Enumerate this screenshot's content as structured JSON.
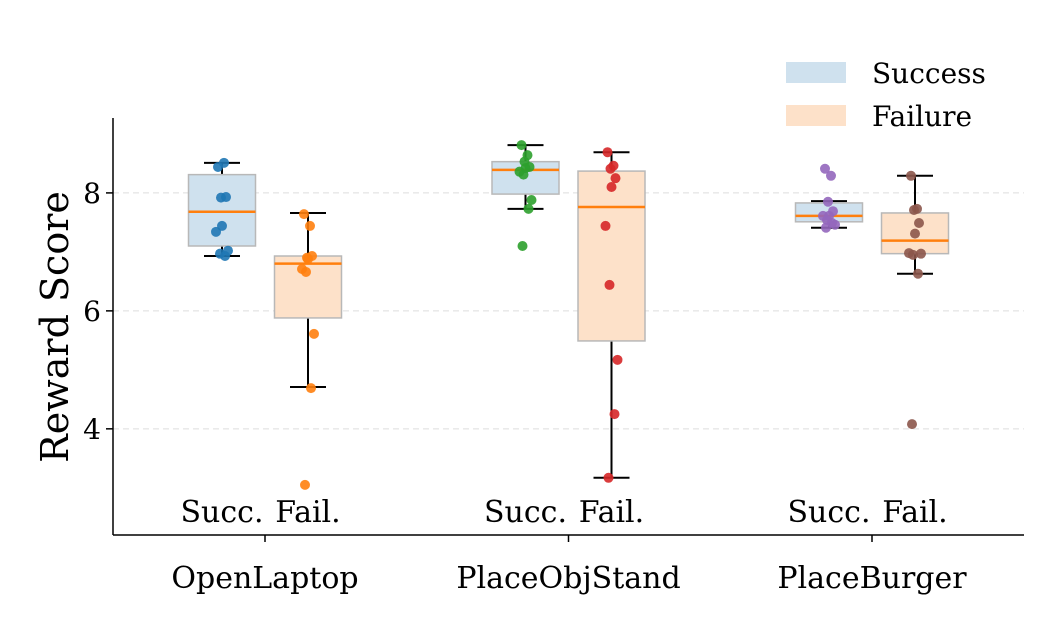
{
  "chart_data": {
    "type": "box",
    "title": "",
    "xlabel": "",
    "ylabel": "Reward Score",
    "ylim": [
      2.2,
      9.27
    ],
    "yticks": [
      4,
      6,
      8
    ],
    "grid": "y-dashed",
    "legend": {
      "placement": "top-right",
      "entries": [
        {
          "label": "Success",
          "color": "#cfe1ee"
        },
        {
          "label": "Failure",
          "color": "#fde1c9"
        }
      ]
    },
    "sublabels": {
      "success": "Succ.",
      "failure": "Fail."
    },
    "median_color": "#ff7f0e",
    "groups": [
      {
        "label": "OpenLaptop",
        "success": {
          "q1": 7.1,
          "median": 7.68,
          "q3": 8.31,
          "whisker_low": 6.93,
          "whisker_high": 8.51,
          "point_color": "#1f77b4",
          "points": [
            8.44,
            8.51,
            7.92,
            7.93,
            7.44,
            7.34,
            6.97,
            7.02,
            6.93
          ]
        },
        "failure": {
          "q1": 5.88,
          "median": 6.8,
          "q3": 6.93,
          "whisker_low": 4.71,
          "whisker_high": 7.66,
          "point_color": "#ff7f0e",
          "points": [
            7.64,
            7.44,
            6.9,
            6.93,
            6.88,
            6.71,
            6.66,
            5.61,
            4.69,
            3.05
          ]
        }
      },
      {
        "label": "PlaceObjStand",
        "success": {
          "q1": 7.98,
          "median": 8.39,
          "q3": 8.53,
          "whisker_low": 7.73,
          "whisker_high": 8.81,
          "point_color": "#2ca02c",
          "points": [
            8.81,
            8.64,
            8.53,
            8.44,
            8.42,
            8.36,
            8.31,
            7.88,
            7.73,
            7.1
          ]
        },
        "failure": {
          "q1": 5.49,
          "median": 7.76,
          "q3": 8.37,
          "whisker_low": 3.17,
          "whisker_high": 8.69,
          "point_color": "#d62728",
          "points": [
            8.69,
            8.46,
            8.41,
            8.25,
            8.1,
            7.44,
            6.44,
            5.17,
            4.25,
            3.17
          ]
        }
      },
      {
        "label": "PlaceBurger",
        "success": {
          "q1": 7.51,
          "median": 7.61,
          "q3": 7.83,
          "whisker_low": 7.41,
          "whisker_high": 7.86,
          "point_color": "#9467bd",
          "points": [
            8.41,
            8.29,
            7.85,
            7.69,
            7.61,
            7.61,
            7.54,
            7.46,
            7.49,
            7.41
          ]
        },
        "failure": {
          "q1": 6.97,
          "median": 7.19,
          "q3": 7.66,
          "whisker_low": 6.63,
          "whisker_high": 8.29,
          "point_color": "#8c564b",
          "points": [
            8.29,
            7.73,
            7.71,
            7.49,
            7.31,
            6.98,
            6.95,
            6.97,
            6.63,
            4.08
          ]
        }
      }
    ]
  }
}
